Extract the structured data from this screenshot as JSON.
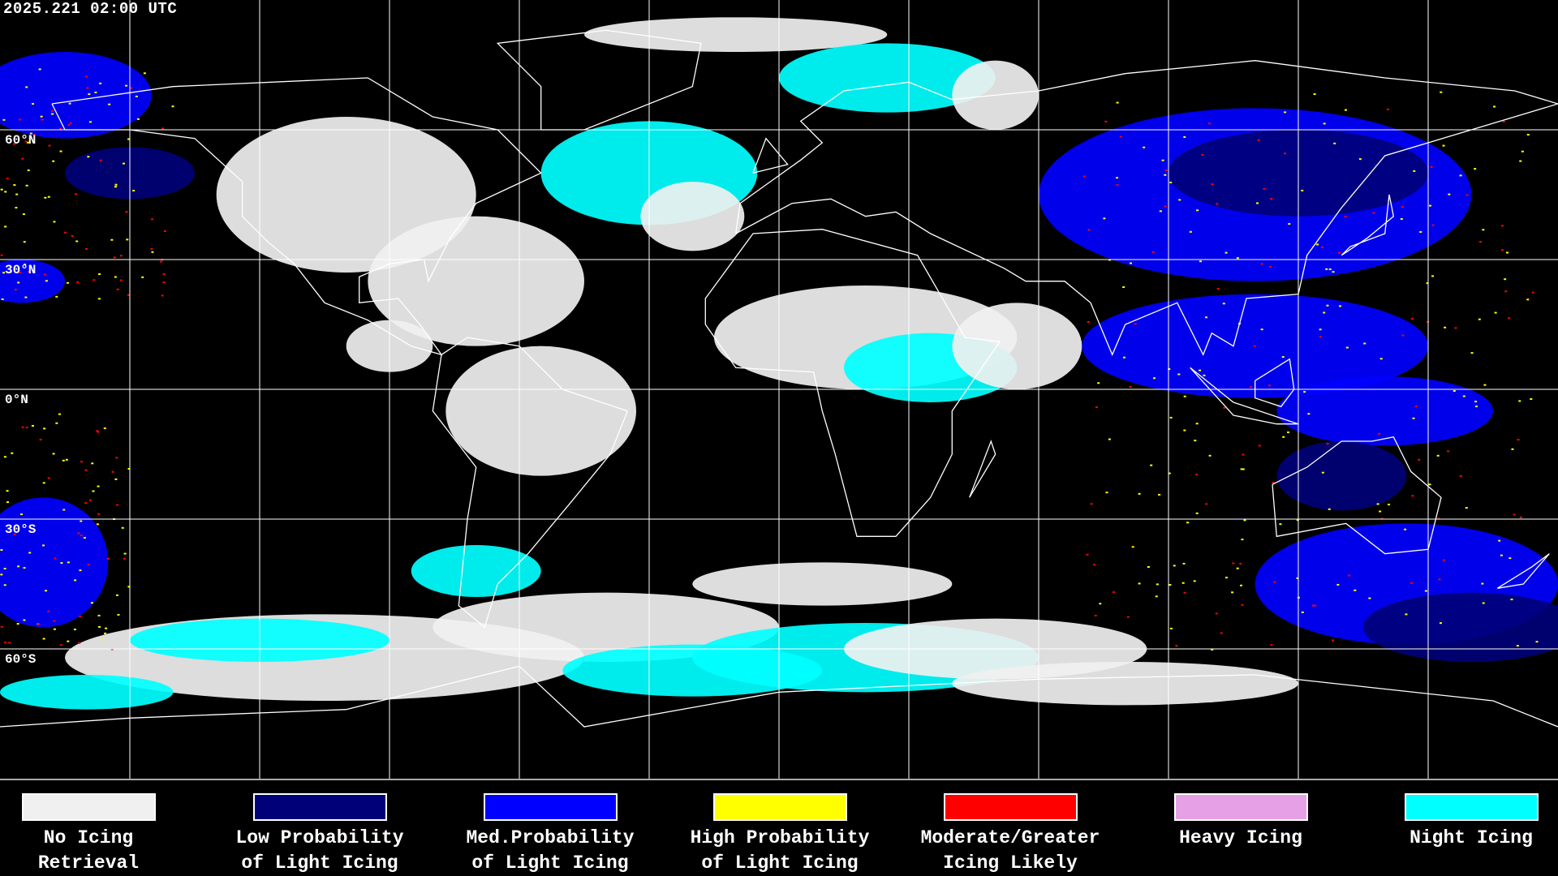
{
  "timestamp": "2025.221 02:00 UTC",
  "lat_labels": [
    "60°N",
    "30°N",
    "0°N",
    "30°S",
    "60°S"
  ],
  "colors": {
    "background": "#000000",
    "grid": "#ffffff",
    "coastline": "#ffffff"
  },
  "legend": [
    {
      "line1": "No Icing",
      "line2": "Retrieval",
      "color": "#f0f0f0"
    },
    {
      "line1": "Low Probability",
      "line2": "of Light Icing",
      "color": "#000078"
    },
    {
      "line1": "Med.Probability",
      "line2": "of Light Icing",
      "color": "#0000ff"
    },
    {
      "line1": "High Probability",
      "line2": "of Light Icing",
      "color": "#ffff00"
    },
    {
      "line1": "Moderate/Greater",
      "line2": "Icing Likely",
      "color": "#ff0000"
    },
    {
      "line1": "Heavy Icing",
      "line2": "",
      "color": "#e6a0e6"
    },
    {
      "line1": "Night Icing",
      "line2": "",
      "color": "#00ffff"
    }
  ]
}
